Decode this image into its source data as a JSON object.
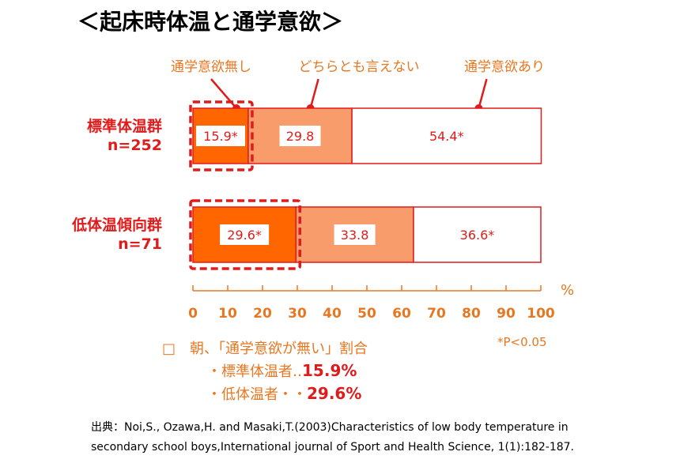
{
  "colors": {
    "no_motivation": "#ff6600",
    "neutral": "#f79c6a",
    "motivation": "#ffffff",
    "bar_border": "#e01b1b",
    "highlight": "#e01b1b",
    "axis": "#e87722",
    "red_text": "#e01b1b",
    "orange_text": "#e87722"
  },
  "chart_data": {
    "type": "bar",
    "orientation": "horizontal",
    "stacked": true,
    "title": "＜起床時体温と通学意欲＞",
    "categories": [
      {
        "name": "標準体温群",
        "n_label": "n=252"
      },
      {
        "name": "低体温傾向群",
        "n_label": "n=71"
      }
    ],
    "series": [
      {
        "name": "通学意欲無し",
        "values": [
          15.9,
          29.6
        ],
        "labels": [
          "15.9*",
          "29.6*"
        ]
      },
      {
        "name": "どちらとも言えない",
        "values": [
          29.8,
          33.8
        ],
        "labels": [
          "29.8",
          "33.8"
        ]
      },
      {
        "name": "通学意欲あり",
        "values": [
          54.4,
          36.6
        ],
        "labels": [
          "54.4*",
          "36.6*"
        ]
      }
    ],
    "xlim": [
      0,
      100
    ],
    "xticks": [
      0,
      10,
      20,
      30,
      40,
      50,
      60,
      70,
      80,
      90,
      100
    ],
    "xunit": "%",
    "legend_placement": "top",
    "note": "*P<0.05"
  },
  "summary": {
    "heading": "□　朝、「通学意欲が無い」割合",
    "items": [
      {
        "label": "・標準体温者‥",
        "value": "15.9%"
      },
      {
        "label": "・低体温者・・",
        "value": "29.6%"
      }
    ]
  },
  "source": {
    "line1": "出典：Noi,S., Ozawa,H. and Masaki,T.(2003)Characteristics of  low body temperature in",
    "line2": "secondary school boys,International journal of Sport and Health Science, 1(1):182-187."
  }
}
